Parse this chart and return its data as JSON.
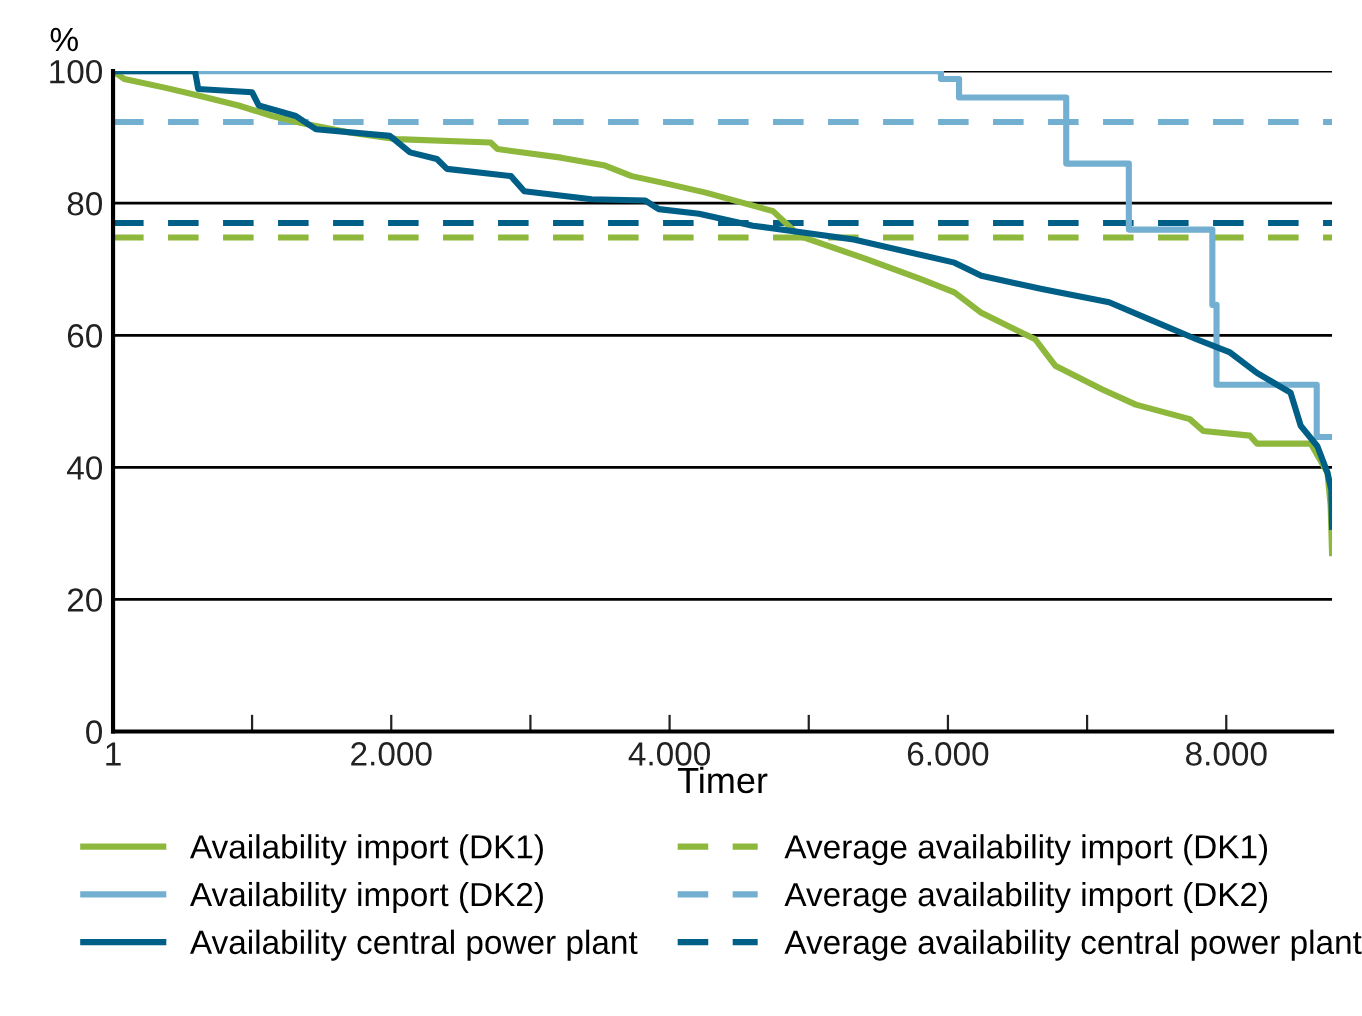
{
  "chart_data": {
    "type": "line",
    "xlabel": "Timer",
    "ylabel": "%",
    "xlim": [
      1,
      8760
    ],
    "xticks": [
      1,
      {
        "value": 1000,
        "label": null
      },
      {
        "value": 2000,
        "label": "2.000"
      },
      {
        "value": 3000,
        "label": null
      },
      {
        "value": 4000,
        "label": "4.000"
      },
      {
        "value": 5000,
        "label": null
      },
      {
        "value": 6000,
        "label": "6.000"
      },
      {
        "value": 7000,
        "label": null
      },
      {
        "value": 8000,
        "label": "8.000"
      }
    ],
    "ylim": [
      0,
      100
    ],
    "yticks": [
      0,
      20,
      40,
      60,
      80,
      100
    ],
    "grid": "y",
    "legend": "bottom",
    "line_style": "solid",
    "marker": "none",
    "series": [
      {
        "name": "Availability import (DK1)",
        "color": "#8db83c",
        "x": [
          1,
          82,
          372,
          613,
          903,
          1145,
          1386,
          1700,
          2040,
          2714,
          2763,
          3221,
          3536,
          3728,
          3970,
          4260,
          4743,
          4936,
          5420,
          5806,
          6047,
          6240,
          6627,
          6771,
          7110,
          7350,
          7738,
          7835,
          8170,
          8220,
          8607,
          8727,
          8750,
          8760
        ],
        "values": [
          100,
          98.8,
          97.5,
          96.3,
          94.8,
          93.2,
          92,
          90.7,
          89.7,
          89.2,
          88.2,
          86.9,
          85.7,
          84.1,
          83,
          81.6,
          78.8,
          75,
          71.5,
          68.5,
          66.5,
          63.4,
          59.4,
          55.4,
          51.8,
          49.5,
          47.3,
          45.5,
          44.8,
          43.6,
          43.6,
          39.2,
          34.2,
          27
        ]
      },
      {
        "name": "Availability import (DK2)",
        "color": "#73afd0",
        "type": "step",
        "x": [
          1,
          5950,
          6080,
          6850,
          7300,
          7900,
          7930,
          8650,
          8760
        ],
        "values": [
          100,
          98.8,
          96,
          86,
          76,
          64.6,
          52.5,
          44.6,
          44.6
        ]
      },
      {
        "name": "Availability central power plant",
        "color": "#005f87",
        "x": [
          1,
          590,
          613,
          1000,
          1048,
          1314,
          1459,
          1990,
          2135,
          2328,
          2400,
          2860,
          2956,
          3440,
          3826,
          3922,
          4212,
          4598,
          5323,
          6047,
          6240,
          6675,
          7158,
          7448,
          7786,
          8027,
          8220,
          8462,
          8535,
          8655,
          8727,
          8755,
          8760
        ],
        "values": [
          100,
          100,
          97.3,
          96.8,
          94.8,
          93.2,
          91.2,
          90.2,
          87.7,
          86.7,
          85.2,
          84.1,
          81.8,
          80.6,
          80.4,
          79.1,
          78.4,
          76.6,
          74.5,
          71,
          69,
          67,
          65,
          62.4,
          59.4,
          57.4,
          54.3,
          51.3,
          46.3,
          43.2,
          39.2,
          36.6,
          31
        ]
      }
    ],
    "ref_lines": [
      {
        "axis": "y",
        "value": 74.8,
        "label": "Average availability import (DK1)",
        "color": "#8db83c",
        "line_style": "dashed"
      },
      {
        "axis": "y",
        "value": 92.3,
        "label": "Average availability import (DK2)",
        "color": "#73afd0",
        "line_style": "dashed"
      },
      {
        "axis": "y",
        "value": 77,
        "label": "Average availability central power plant",
        "color": "#005f87",
        "line_style": "dashed"
      }
    ]
  }
}
